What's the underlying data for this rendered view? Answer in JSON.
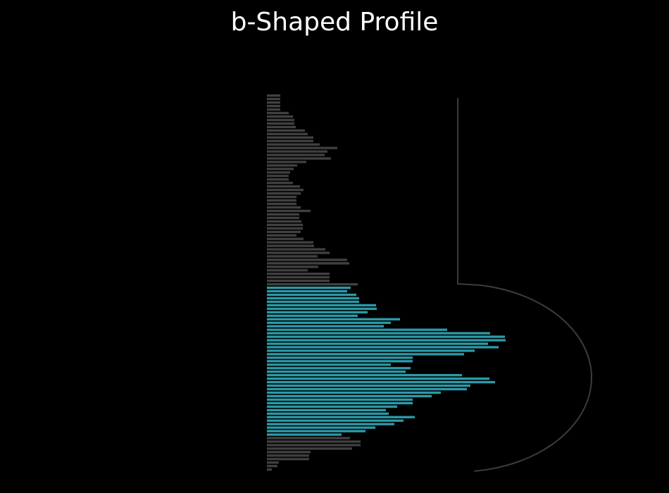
{
  "chart_data": {
    "type": "bar",
    "orientation": "horizontal",
    "title": "b-Shaped Profile",
    "xlabel": "",
    "ylabel": "",
    "grid": false,
    "legend": "none",
    "colors": {
      "background": "#000000",
      "value_area": "#2a9aa8",
      "outside_value_area": "#404040",
      "guide": "#3c3c3c",
      "title": "#ffffff"
    },
    "value_area": {
      "start_index": 55,
      "end_index": 97
    },
    "values_top_to_bottom": [
      19,
      19,
      19,
      19,
      19,
      31,
      37,
      39,
      39,
      41,
      54,
      58,
      66,
      66,
      75,
      100,
      86,
      82,
      91,
      56,
      43,
      38,
      33,
      31,
      31,
      37,
      47,
      52,
      48,
      42,
      42,
      42,
      48,
      62,
      46,
      46,
      49,
      51,
      51,
      48,
      42,
      52,
      66,
      67,
      83,
      89,
      72,
      114,
      117,
      73,
      58,
      89,
      89,
      89,
      129,
      119,
      114,
      127,
      131,
      131,
      155,
      156,
      143,
      129,
      189,
      176,
      166,
      256,
      317,
      338,
      339,
      314,
      329,
      295,
      280,
      207,
      207,
      176,
      204,
      197,
      277,
      316,
      324,
      289,
      284,
      247,
      234,
      207,
      207,
      185,
      169,
      173,
      210,
      194,
      181,
      154,
      140,
      106,
      118,
      133,
      133,
      121,
      62,
      60,
      60,
      17,
      15,
      7
    ],
    "guides": [
      {
        "shape": "vertical-line",
        "range_index": [
          0,
          54
        ]
      },
      {
        "shape": "half-bell-curve",
        "range_index": [
          55,
          107
        ],
        "peak_index": 81
      }
    ]
  }
}
